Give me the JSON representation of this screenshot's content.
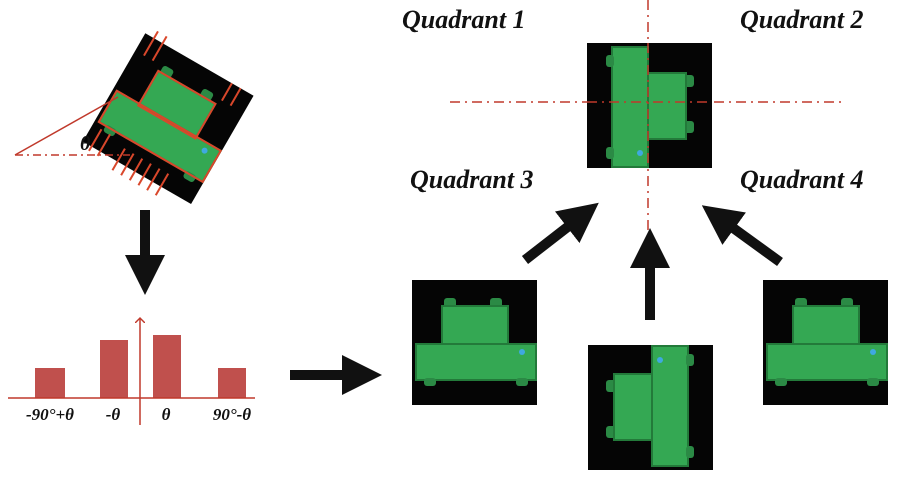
{
  "quadrants": [
    "Quadrant 1",
    "Quadrant 2",
    "Quadrant 3",
    "Quadrant 4"
  ],
  "angle_label": "θ",
  "histogram": {
    "labels": [
      "-90°+θ",
      "-θ",
      "θ",
      "90°-θ"
    ]
  }
}
